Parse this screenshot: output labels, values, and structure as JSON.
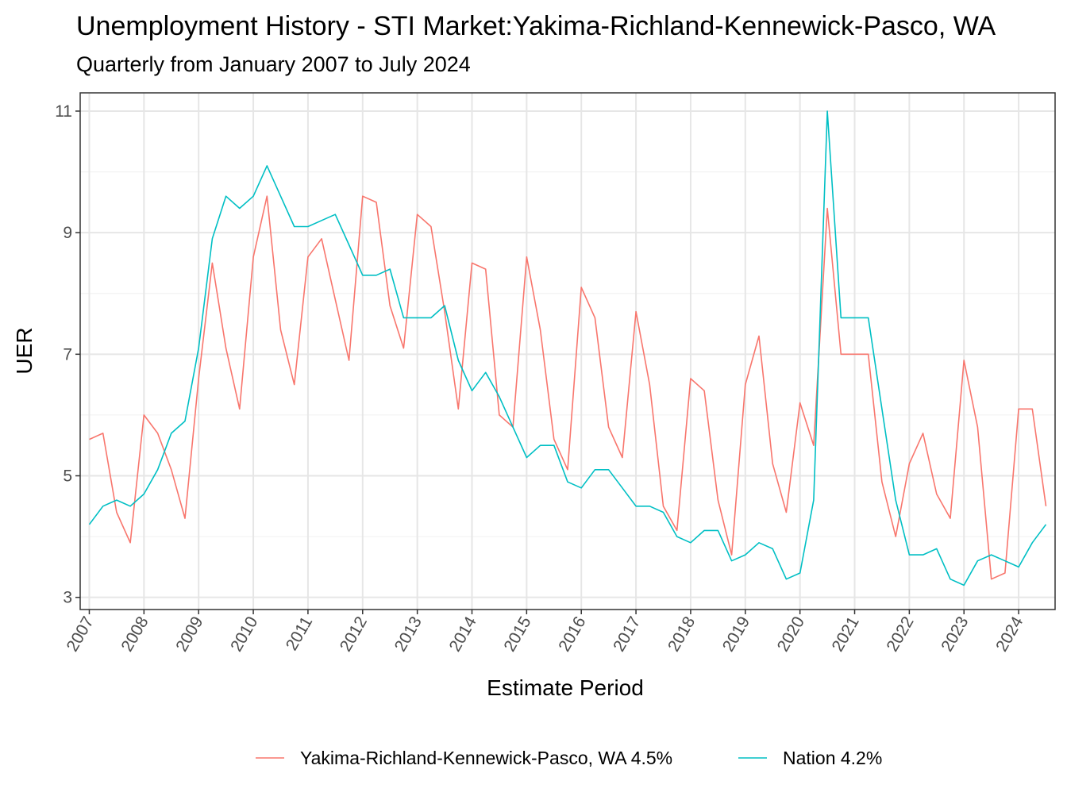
{
  "chart_data": {
    "type": "line",
    "title": "Unemployment History - STI Market:Yakima-Richland-Kennewick-Pasco, WA",
    "subtitle": "Quarterly from January 2007 to July 2024",
    "xlabel": "Estimate Period",
    "ylabel": "UER",
    "x_start": "2007-01",
    "x_step_months": 3,
    "xlim": [
      "2006-11",
      "2024-09"
    ],
    "ylim": [
      2.8,
      11.3
    ],
    "y_ticks": [
      3,
      5,
      7,
      9,
      11
    ],
    "x_ticks": [
      "2007",
      "2008",
      "2009",
      "2010",
      "2011",
      "2012",
      "2013",
      "2014",
      "2015",
      "2016",
      "2017",
      "2018",
      "2019",
      "2020",
      "2021",
      "2022",
      "2023",
      "2024"
    ],
    "grid": true,
    "legend_position": "bottom",
    "series": [
      {
        "name": "Yakima-Richland-Kennewick-Pasco, WA 4.5%",
        "color": "#F8766D",
        "values": [
          5.6,
          5.7,
          4.4,
          3.9,
          6.0,
          5.7,
          5.1,
          4.3,
          6.6,
          8.5,
          7.1,
          6.1,
          8.6,
          9.6,
          7.4,
          6.5,
          8.6,
          8.9,
          7.9,
          6.9,
          9.6,
          9.5,
          7.8,
          7.1,
          9.3,
          9.1,
          7.7,
          6.1,
          8.5,
          8.4,
          6.0,
          5.8,
          8.6,
          7.4,
          5.6,
          5.1,
          8.1,
          7.6,
          5.8,
          5.3,
          7.7,
          6.5,
          4.5,
          4.1,
          6.6,
          6.4,
          4.6,
          3.7,
          6.5,
          7.3,
          5.2,
          4.4,
          6.2,
          5.5,
          9.4,
          7.0,
          7.0,
          7.0,
          4.9,
          4.0,
          5.2,
          5.7,
          4.7,
          4.3,
          6.9,
          5.8,
          3.3,
          3.4,
          6.1,
          6.1,
          4.5
        ]
      },
      {
        "name": "Nation 4.2%",
        "color": "#00BFC4",
        "values": [
          4.2,
          4.5,
          4.6,
          4.5,
          4.7,
          5.1,
          5.7,
          5.9,
          7.1,
          8.9,
          9.6,
          9.4,
          9.6,
          10.1,
          9.6,
          9.1,
          9.1,
          9.2,
          9.3,
          8.8,
          8.3,
          8.3,
          8.4,
          7.6,
          7.6,
          7.6,
          7.8,
          6.9,
          6.4,
          6.7,
          6.3,
          5.8,
          5.3,
          5.5,
          5.5,
          4.9,
          4.8,
          5.1,
          5.1,
          4.8,
          4.5,
          4.5,
          4.4,
          4.0,
          3.9,
          4.1,
          4.1,
          3.6,
          3.7,
          3.9,
          3.8,
          3.3,
          3.4,
          4.6,
          11.0,
          7.6,
          7.6,
          7.6,
          6.1,
          4.6,
          3.7,
          3.7,
          3.8,
          3.3,
          3.2,
          3.6,
          3.7,
          3.6,
          3.5,
          3.9,
          4.2
        ]
      }
    ]
  }
}
